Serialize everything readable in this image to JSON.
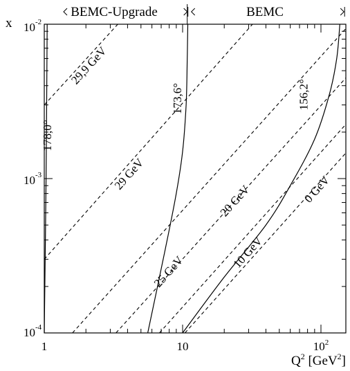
{
  "chart_data": {
    "type": "line",
    "xlabel": "Q",
    "xlabel_sup": "2",
    "xlabel_unit_open": " [GeV",
    "xlabel_unit_sup": "2",
    "xlabel_unit_close": "]",
    "ylabel": "x",
    "x_scale": "log",
    "y_scale": "log",
    "xlim": [
      1,
      150
    ],
    "ylim": [
      0.0001,
      0.01
    ],
    "grid": false,
    "x_ticks": [
      {
        "value": 1,
        "label": "1"
      },
      {
        "value": 10,
        "label": "10"
      },
      {
        "value": 100,
        "base": "10",
        "exp": "2"
      }
    ],
    "y_ticks": [
      {
        "value": 0.0001,
        "base": "10",
        "exp": "-4"
      },
      {
        "value": 0.001,
        "base": "10",
        "exp": "-3"
      },
      {
        "value": 0.01,
        "base": "10",
        "exp": "-2"
      }
    ],
    "regions": [
      {
        "label": "BEMC-Upgrade",
        "x_from": 1,
        "x_to": 10.8
      },
      {
        "label": "BEMC",
        "x_from": 10.8,
        "x_to": 150
      }
    ],
    "angle_lines": [
      {
        "label": "178,0°",
        "label_at": [
          1.12,
          0.0019
        ],
        "points": [
          [
            1.0,
            0.0001
          ],
          [
            1.03,
            0.001
          ],
          [
            1.05,
            0.01
          ]
        ]
      },
      {
        "label": "173,6°",
        "label_at": [
          9.8,
          0.0033
        ],
        "points": [
          [
            5.6,
            0.0001
          ],
          [
            7.5,
            0.00035
          ],
          [
            9.0,
            0.0008
          ],
          [
            10.0,
            0.0015
          ],
          [
            10.6,
            0.003
          ],
          [
            10.8,
            0.006
          ],
          [
            10.9,
            0.01
          ]
        ]
      },
      {
        "label": "156,2°",
        "label_at": [
          80,
          0.0035
        ],
        "points": [
          [
            10.0,
            0.0001
          ],
          [
            20,
            0.00023
          ],
          [
            40,
            0.0005
          ],
          [
            60,
            0.0009
          ],
          [
            90,
            0.0018
          ],
          [
            115,
            0.0035
          ],
          [
            130,
            0.006
          ],
          [
            137,
            0.01
          ]
        ]
      }
    ],
    "energy_lines": [
      {
        "label": "29,9 GeV",
        "label_at": [
          2.2,
          0.0052
        ],
        "points": [
          [
            1.0,
            0.003
          ],
          [
            3.4,
            0.01
          ]
        ]
      },
      {
        "label": "29 GeV",
        "label_at": [
          4.3,
          0.00103
        ],
        "points": [
          [
            1.0,
            0.0003
          ],
          [
            32,
            0.01
          ]
        ]
      },
      {
        "label": "25 GeV",
        "label_at": [
          8.3,
          0.00024
        ],
        "points": [
          [
            1.6,
            0.0001
          ],
          [
            155,
            0.0096
          ]
        ]
      },
      {
        "label": "20 GeV",
        "label_at": [
          25,
          0.00069
        ],
        "points": [
          [
            3.3,
            0.0001
          ],
          [
            155,
            0.0046
          ]
        ]
      },
      {
        "label": "10 GeV",
        "label_at": [
          31,
          0.00032
        ],
        "points": [
          [
            6.8,
            0.0001
          ],
          [
            155,
            0.0023
          ]
        ]
      },
      {
        "label": "0 GeV",
        "label_at": [
          98,
          0.00082
        ],
        "points": [
          [
            10.4,
            0.0001
          ],
          [
            155,
            0.0015
          ]
        ]
      }
    ]
  }
}
